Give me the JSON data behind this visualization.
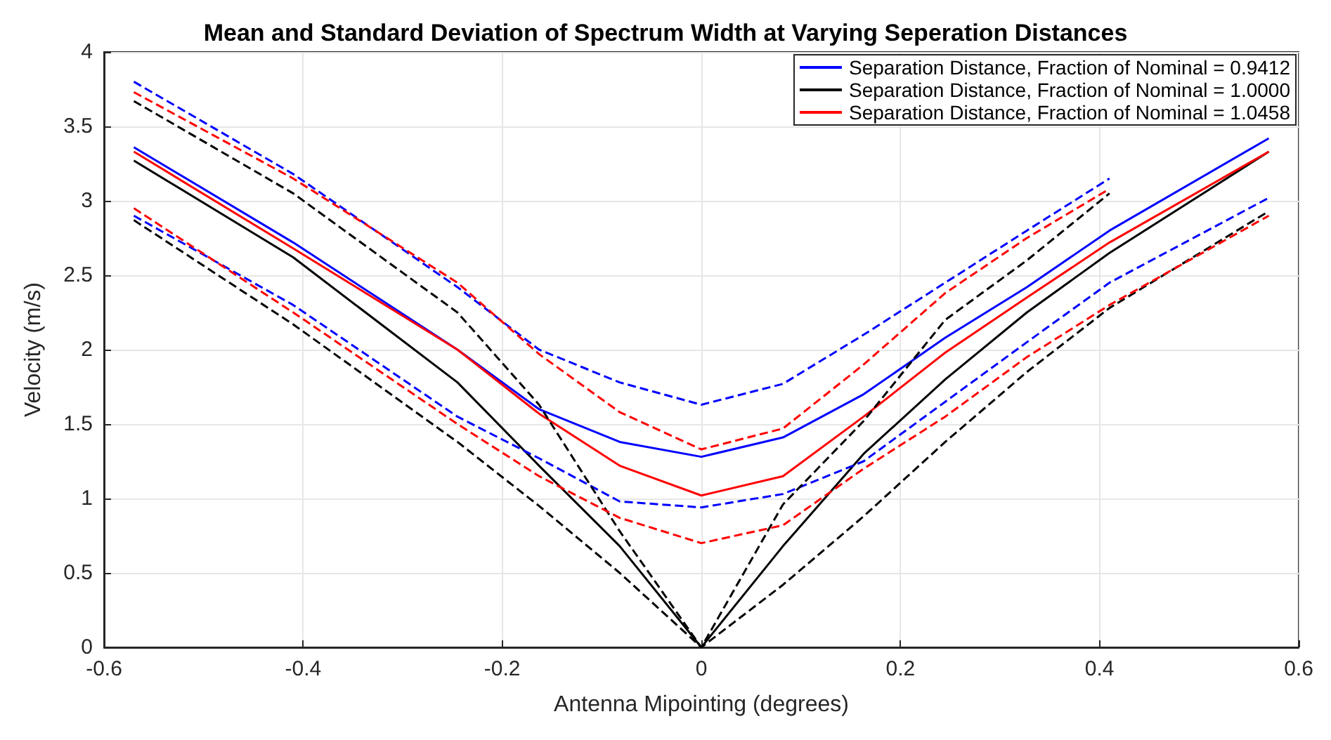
{
  "chart_data": {
    "type": "line",
    "title": "Mean and Standard Deviation of Spectrum Width at Varying Seperation Distances",
    "xlabel": "Antenna Mipointing (degrees)",
    "ylabel": "Velocity (m/s)",
    "x": [
      -0.57,
      -0.41,
      -0.245,
      -0.163,
      -0.082,
      0,
      0.082,
      0.163,
      0.245,
      0.327,
      0.41,
      0.57
    ],
    "xlim": [
      -0.6,
      0.6
    ],
    "xticks": [
      -0.6,
      -0.4,
      -0.2,
      0,
      0.2,
      0.4,
      0.6
    ],
    "ylim": [
      0,
      4
    ],
    "yticks": [
      0,
      0.5,
      1,
      1.5,
      2,
      2.5,
      3,
      3.5,
      4
    ],
    "grid": true,
    "legend": "top right",
    "marker": "none",
    "series": [
      {
        "name": "Separation Distance, Fraction of Nominal = 0.9412",
        "color": "#0000ff",
        "line_style": "solid",
        "values": [
          3.36,
          2.72,
          2.0,
          1.6,
          1.38,
          1.28,
          1.41,
          1.7,
          2.08,
          2.42,
          2.8,
          3.42
        ]
      },
      {
        "name": "Separation Distance, Fraction of Nominal = 1.0000",
        "color": "#000000",
        "line_style": "solid",
        "values": [
          3.27,
          2.62,
          1.78,
          1.22,
          0.68,
          0,
          0.68,
          1.3,
          1.8,
          2.25,
          2.65,
          3.33
        ]
      },
      {
        "name": "Separation Distance, Fraction of Nominal = 1.0458",
        "color": "#ff0000",
        "line_style": "solid",
        "values": [
          3.33,
          2.68,
          2.0,
          1.57,
          1.22,
          1.02,
          1.15,
          1.55,
          1.98,
          2.35,
          2.72,
          3.33
        ]
      },
      {
        "color": "#0000ff",
        "line_style": "dashed",
        "values": [
          3.8,
          3.18,
          2.42,
          2.0,
          1.78,
          1.63,
          1.77,
          2.1,
          2.45,
          2.8,
          3.15,
          null
        ]
      },
      {
        "color": "#0000ff",
        "line_style": "dashed",
        "values": [
          2.9,
          2.3,
          1.55,
          1.27,
          0.98,
          0.94,
          1.03,
          1.25,
          1.65,
          2.05,
          2.45,
          3.02
        ]
      },
      {
        "color": "#000000",
        "line_style": "dashed",
        "values": [
          3.67,
          3.05,
          2.25,
          1.63,
          0.78,
          0,
          0.96,
          1.52,
          2.2,
          2.6,
          3.05,
          null
        ]
      },
      {
        "color": "#000000",
        "line_style": "dashed",
        "values": [
          2.87,
          2.17,
          1.38,
          0.95,
          0.5,
          0,
          0.42,
          0.88,
          1.38,
          1.85,
          2.28,
          2.93
        ]
      },
      {
        "color": "#ff0000",
        "line_style": "dashed",
        "values": [
          3.73,
          3.15,
          2.45,
          1.97,
          1.58,
          1.33,
          1.47,
          1.9,
          2.38,
          2.75,
          3.08,
          null
        ]
      },
      {
        "color": "#ff0000",
        "line_style": "dashed",
        "values": [
          2.95,
          2.25,
          1.5,
          1.15,
          0.87,
          0.7,
          0.82,
          1.2,
          1.55,
          1.95,
          2.3,
          2.9
        ]
      }
    ]
  }
}
